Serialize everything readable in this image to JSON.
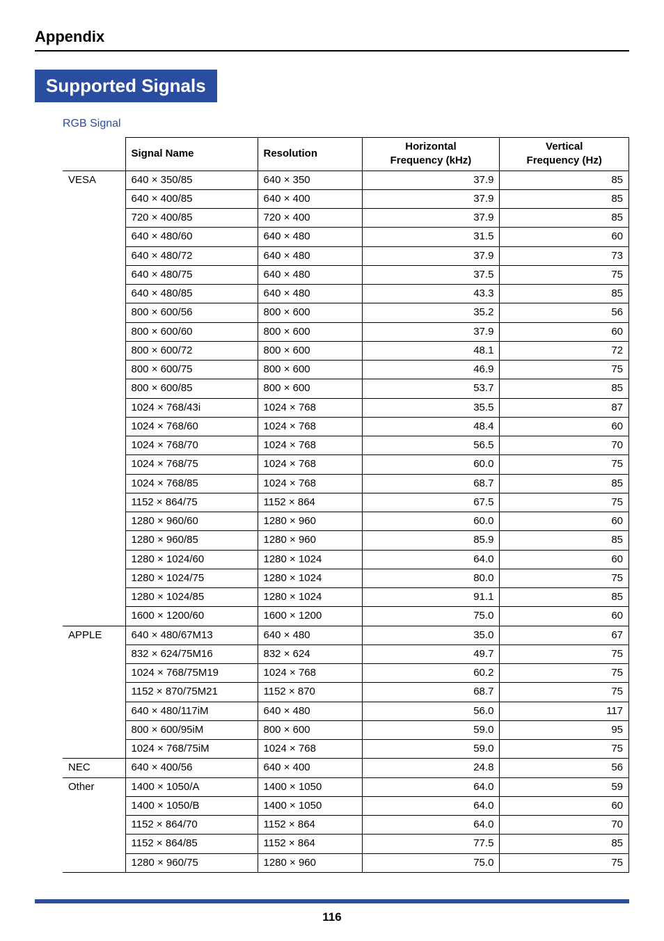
{
  "header": {
    "appendix": "Appendix"
  },
  "title": "Supported Signals",
  "subhead": "RGB Signal",
  "table": {
    "columns": {
      "signal_name": "Signal Name",
      "resolution": "Resolution",
      "horizontal_l1": "Horizontal",
      "horizontal_l2": "Frequency (kHz)",
      "vertical_l1": "Vertical",
      "vertical_l2": "Frequency (Hz)"
    },
    "groups": [
      {
        "category": "VESA",
        "rows": [
          {
            "sig": "640 × 350/85",
            "res": "640 × 350",
            "hf": "37.9",
            "vf": "85"
          },
          {
            "sig": "640 × 400/85",
            "res": "640 × 400",
            "hf": "37.9",
            "vf": "85"
          },
          {
            "sig": "720 × 400/85",
            "res": "720 × 400",
            "hf": "37.9",
            "vf": "85"
          },
          {
            "sig": "640 × 480/60",
            "res": "640 × 480",
            "hf": "31.5",
            "vf": "60"
          },
          {
            "sig": "640 × 480/72",
            "res": "640 × 480",
            "hf": "37.9",
            "vf": "73"
          },
          {
            "sig": "640 × 480/75",
            "res": "640 × 480",
            "hf": "37.5",
            "vf": "75"
          },
          {
            "sig": "640 × 480/85",
            "res": "640 × 480",
            "hf": "43.3",
            "vf": "85"
          },
          {
            "sig": "800 × 600/56",
            "res": "800 × 600",
            "hf": "35.2",
            "vf": "56"
          },
          {
            "sig": "800 × 600/60",
            "res": "800 × 600",
            "hf": "37.9",
            "vf": "60"
          },
          {
            "sig": "800 × 600/72",
            "res": "800 × 600",
            "hf": "48.1",
            "vf": "72"
          },
          {
            "sig": "800 × 600/75",
            "res": "800 × 600",
            "hf": "46.9",
            "vf": "75"
          },
          {
            "sig": "800 × 600/85",
            "res": "800 × 600",
            "hf": "53.7",
            "vf": "85"
          },
          {
            "sig": "1024 × 768/43i",
            "res": "1024 × 768",
            "hf": "35.5",
            "vf": "87"
          },
          {
            "sig": "1024 × 768/60",
            "res": "1024 × 768",
            "hf": "48.4",
            "vf": "60"
          },
          {
            "sig": "1024 × 768/70",
            "res": "1024 × 768",
            "hf": "56.5",
            "vf": "70"
          },
          {
            "sig": "1024 × 768/75",
            "res": "1024 × 768",
            "hf": "60.0",
            "vf": "75"
          },
          {
            "sig": "1024 × 768/85",
            "res": "1024 × 768",
            "hf": "68.7",
            "vf": "85"
          },
          {
            "sig": "1152 × 864/75",
            "res": "1152 × 864",
            "hf": "67.5",
            "vf": "75"
          },
          {
            "sig": "1280 × 960/60",
            "res": "1280 × 960",
            "hf": "60.0",
            "vf": "60"
          },
          {
            "sig": "1280 × 960/85",
            "res": "1280 × 960",
            "hf": "85.9",
            "vf": "85"
          },
          {
            "sig": "1280 × 1024/60",
            "res": "1280 × 1024",
            "hf": "64.0",
            "vf": "60"
          },
          {
            "sig": "1280 × 1024/75",
            "res": "1280 × 1024",
            "hf": "80.0",
            "vf": "75"
          },
          {
            "sig": "1280 × 1024/85",
            "res": "1280 × 1024",
            "hf": "91.1",
            "vf": "85"
          },
          {
            "sig": "1600 × 1200/60",
            "res": "1600 × 1200",
            "hf": "75.0",
            "vf": "60"
          }
        ]
      },
      {
        "category": "APPLE",
        "rows": [
          {
            "sig": "640 × 480/67M13",
            "res": "640 × 480",
            "hf": "35.0",
            "vf": "67"
          },
          {
            "sig": "832 × 624/75M16",
            "res": "832 × 624",
            "hf": "49.7",
            "vf": "75"
          },
          {
            "sig": "1024 × 768/75M19",
            "res": "1024 × 768",
            "hf": "60.2",
            "vf": "75"
          },
          {
            "sig": "1152 × 870/75M21",
            "res": "1152 × 870",
            "hf": "68.7",
            "vf": "75"
          },
          {
            "sig": "640 × 480/117iM",
            "res": "640 × 480",
            "hf": "56.0",
            "vf": "117"
          },
          {
            "sig": "800 × 600/95iM",
            "res": "800 × 600",
            "hf": "59.0",
            "vf": "95"
          },
          {
            "sig": "1024 × 768/75iM",
            "res": "1024 × 768",
            "hf": "59.0",
            "vf": "75"
          }
        ]
      },
      {
        "category": "NEC",
        "rows": [
          {
            "sig": "640 × 400/56",
            "res": "640 × 400",
            "hf": "24.8",
            "vf": "56"
          }
        ]
      },
      {
        "category": "Other",
        "rows": [
          {
            "sig": "1400 × 1050/A",
            "res": "1400 × 1050",
            "hf": "64.0",
            "vf": "59"
          },
          {
            "sig": "1400 × 1050/B",
            "res": "1400 × 1050",
            "hf": "64.0",
            "vf": "60"
          },
          {
            "sig": "1152 × 864/70",
            "res": "1152 × 864",
            "hf": "64.0",
            "vf": "70"
          },
          {
            "sig": "1152 × 864/85",
            "res": "1152 × 864",
            "hf": "77.5",
            "vf": "85"
          },
          {
            "sig": "1280 × 960/75",
            "res": "1280 × 960",
            "hf": "75.0",
            "vf": "75"
          }
        ]
      }
    ]
  },
  "footer": {
    "page": "116"
  },
  "style": {
    "accent": "#2b4da0",
    "text": "#000000",
    "bg": "#ffffff"
  }
}
